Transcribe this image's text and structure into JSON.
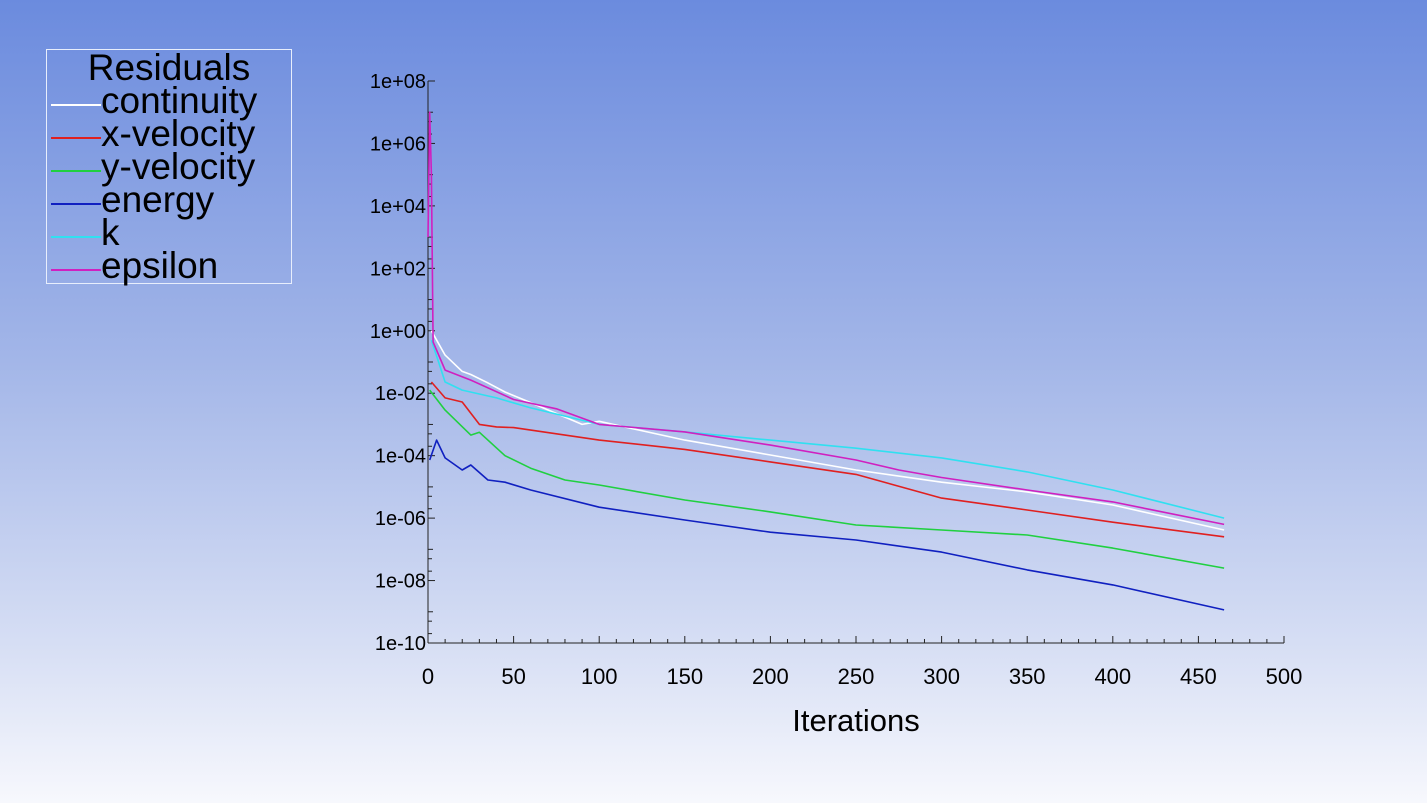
{
  "chart_data": {
    "type": "line",
    "title": "",
    "xlabel": "Iterations",
    "ylabel": "",
    "yscale": "log",
    "xlim": [
      0,
      500
    ],
    "ylim": [
      1e-10,
      100000000.0
    ],
    "xticks": [
      "0",
      "50",
      "100",
      "150",
      "200",
      "250",
      "300",
      "350",
      "400",
      "450",
      "500"
    ],
    "xtick_values": [
      0,
      50,
      100,
      150,
      200,
      250,
      300,
      350,
      400,
      450,
      500
    ],
    "yticks": [
      "1e-10",
      "1e-08",
      "1e-06",
      "1e-04",
      "1e-02",
      "1e+00",
      "1e+02",
      "1e+04",
      "1e+06",
      "1e+08"
    ],
    "ytick_values": [
      1e-10,
      1e-08,
      1e-06,
      0.0001,
      0.01,
      1,
      100.0,
      10000.0,
      1000000.0,
      100000000.0
    ],
    "legend": {
      "title": "Residuals",
      "placement": "top-left"
    },
    "series": [
      {
        "name": "continuity",
        "color": "#ffffff",
        "x": [
          2,
          10,
          20,
          25,
          35,
          45,
          60,
          90,
          100,
          150,
          200,
          250,
          300,
          350,
          400,
          465
        ],
        "log10_y": [
          0.0,
          -0.78,
          -1.3,
          -1.4,
          -1.67,
          -1.96,
          -2.3,
          -3.0,
          -2.9,
          -3.5,
          -3.98,
          -4.46,
          -4.85,
          -5.16,
          -5.58,
          -6.38
        ]
      },
      {
        "name": "x-velocity",
        "color": "#e02020",
        "x": [
          2,
          10,
          20,
          30,
          40,
          50,
          100,
          150,
          200,
          250,
          300,
          350,
          400,
          465
        ],
        "log10_y": [
          -1.64,
          -2.15,
          -2.28,
          -3.0,
          -3.08,
          -3.1,
          -3.5,
          -3.8,
          -4.2,
          -4.6,
          -5.36,
          -5.74,
          -6.13,
          -6.6
        ]
      },
      {
        "name": "y-velocity",
        "color": "#20d040",
        "x": [
          1,
          10,
          25,
          30,
          45,
          60,
          80,
          100,
          150,
          200,
          250,
          300,
          350,
          400,
          465
        ],
        "log10_y": [
          -1.9,
          -2.54,
          -3.34,
          -3.25,
          -4.0,
          -4.4,
          -4.78,
          -4.94,
          -5.42,
          -5.8,
          -6.22,
          -6.38,
          -6.54,
          -6.96,
          -7.6
        ]
      },
      {
        "name": "energy",
        "color": "#1020c0",
        "x": [
          1,
          5,
          10,
          20,
          25,
          35,
          45,
          60,
          100,
          150,
          200,
          250,
          300,
          350,
          400,
          465
        ],
        "log10_y": [
          -4.14,
          -3.5,
          -4.07,
          -4.46,
          -4.3,
          -4.78,
          -4.85,
          -5.1,
          -5.65,
          -6.06,
          -6.45,
          -6.7,
          -7.09,
          -7.66,
          -8.14,
          -8.94
        ]
      },
      {
        "name": "k",
        "color": "#30e0f0",
        "x": [
          2,
          10,
          20,
          40,
          60,
          100,
          150,
          200,
          250,
          300,
          350,
          400,
          465
        ],
        "log10_y": [
          -0.3,
          -1.64,
          -1.9,
          -2.15,
          -2.47,
          -3.0,
          -3.24,
          -3.5,
          -3.76,
          -4.07,
          -4.52,
          -5.1,
          -6.0
        ]
      },
      {
        "name": "epsilon",
        "color": "#d020c0",
        "x": [
          0,
          1,
          2,
          3,
          10,
          25,
          50,
          75,
          100,
          150,
          200,
          250,
          275,
          300,
          350,
          400,
          465
        ],
        "log10_y": [
          3.0,
          7.0,
          5.0,
          -0.36,
          -1.26,
          -1.58,
          -2.2,
          -2.5,
          -3.0,
          -3.24,
          -3.66,
          -4.14,
          -4.46,
          -4.7,
          -5.1,
          -5.48,
          -6.2
        ]
      }
    ]
  }
}
